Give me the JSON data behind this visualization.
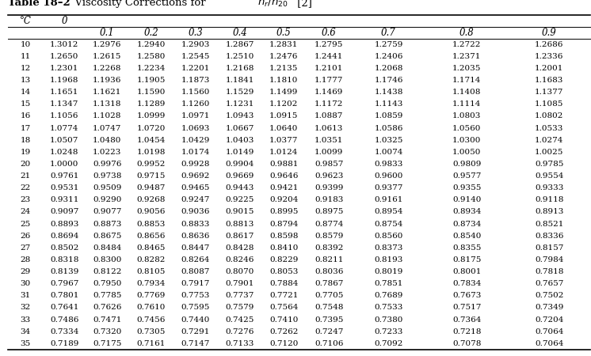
{
  "title_bold": "Table 18–2",
  "title_normal": "  Viscosity Corrections for ",
  "title_math": "$n_r/n_{20}$",
  "title_end": " [2]",
  "col_headers": [
    "0",
    "0.1",
    "0.2",
    "0.3",
    "0.4",
    "0.5",
    "0.6",
    "0.7",
    "0.8",
    "0.9"
  ],
  "row_header": "°C",
  "rows": [
    [
      10,
      1.3012,
      1.2976,
      1.294,
      1.2903,
      1.2867,
      1.2831,
      1.2795,
      1.2759,
      1.2722,
      1.2686
    ],
    [
      11,
      1.265,
      1.2615,
      1.258,
      1.2545,
      1.251,
      1.2476,
      1.2441,
      1.2406,
      1.2371,
      1.2336
    ],
    [
      12,
      1.2301,
      1.2268,
      1.2234,
      1.2201,
      1.2168,
      1.2135,
      1.2101,
      1.2068,
      1.2035,
      1.2001
    ],
    [
      13,
      1.1968,
      1.1936,
      1.1905,
      1.1873,
      1.1841,
      1.181,
      1.1777,
      1.1746,
      1.1714,
      1.1683
    ],
    [
      14,
      1.1651,
      1.1621,
      1.159,
      1.156,
      1.1529,
      1.1499,
      1.1469,
      1.1438,
      1.1408,
      1.1377
    ],
    [
      15,
      1.1347,
      1.1318,
      1.1289,
      1.126,
      1.1231,
      1.1202,
      1.1172,
      1.1143,
      1.1114,
      1.1085
    ],
    [
      16,
      1.1056,
      1.1028,
      1.0999,
      1.0971,
      1.0943,
      1.0915,
      1.0887,
      1.0859,
      1.0803,
      1.0802
    ],
    [
      17,
      1.0774,
      1.0747,
      1.072,
      1.0693,
      1.0667,
      1.064,
      1.0613,
      1.0586,
      1.056,
      1.0533
    ],
    [
      18,
      1.0507,
      1.048,
      1.0454,
      1.0429,
      1.0403,
      1.0377,
      1.0351,
      1.0325,
      1.03,
      1.0274
    ],
    [
      19,
      1.0248,
      1.0223,
      1.0198,
      1.0174,
      1.0149,
      1.0124,
      1.0099,
      1.0074,
      1.005,
      1.0025
    ],
    [
      20,
      1.0,
      0.9976,
      0.9952,
      0.9928,
      0.9904,
      0.9881,
      0.9857,
      0.9833,
      0.9809,
      0.9785
    ],
    [
      21,
      0.9761,
      0.9738,
      0.9715,
      0.9692,
      0.9669,
      0.9646,
      0.9623,
      0.96,
      0.9577,
      0.9554
    ],
    [
      22,
      0.9531,
      0.9509,
      0.9487,
      0.9465,
      0.9443,
      0.9421,
      0.9399,
      0.9377,
      0.9355,
      0.9333
    ],
    [
      23,
      0.9311,
      0.929,
      0.9268,
      0.9247,
      0.9225,
      0.9204,
      0.9183,
      0.9161,
      0.914,
      0.9118
    ],
    [
      24,
      0.9097,
      0.9077,
      0.9056,
      0.9036,
      0.9015,
      0.8995,
      0.8975,
      0.8954,
      0.8934,
      0.8913
    ],
    [
      25,
      0.8893,
      0.8873,
      0.8853,
      0.8833,
      0.8813,
      0.8794,
      0.8774,
      0.8754,
      0.8734,
      0.8521
    ],
    [
      26,
      0.8694,
      0.8675,
      0.8656,
      0.8636,
      0.8617,
      0.8598,
      0.8579,
      0.856,
      0.854,
      0.8336
    ],
    [
      27,
      0.8502,
      0.8484,
      0.8465,
      0.8447,
      0.8428,
      0.841,
      0.8392,
      0.8373,
      0.8355,
      0.8157
    ],
    [
      28,
      0.8318,
      0.83,
      0.8282,
      0.8264,
      0.8246,
      0.8229,
      0.8211,
      0.8193,
      0.8175,
      0.7984
    ],
    [
      29,
      0.8139,
      0.8122,
      0.8105,
      0.8087,
      0.807,
      0.8053,
      0.8036,
      0.8019,
      0.8001,
      0.7818
    ],
    [
      30,
      0.7967,
      0.795,
      0.7934,
      0.7917,
      0.7901,
      0.7884,
      0.7867,
      0.7851,
      0.7834,
      0.7657
    ],
    [
      31,
      0.7801,
      0.7785,
      0.7769,
      0.7753,
      0.7737,
      0.7721,
      0.7705,
      0.7689,
      0.7673,
      0.7502
    ],
    [
      32,
      0.7641,
      0.7626,
      0.761,
      0.7595,
      0.7579,
      0.7564,
      0.7548,
      0.7533,
      0.7517,
      0.7349
    ],
    [
      33,
      0.7486,
      0.7471,
      0.7456,
      0.744,
      0.7425,
      0.741,
      0.7395,
      0.738,
      0.7364,
      0.7204
    ],
    [
      34,
      0.7334,
      0.732,
      0.7305,
      0.7291,
      0.7276,
      0.7262,
      0.7247,
      0.7233,
      0.7218,
      0.7064
    ],
    [
      35,
      0.7189,
      0.7175,
      0.7161,
      0.7147,
      0.7133,
      0.712,
      0.7106,
      0.7092,
      0.7078,
      0.7064
    ]
  ],
  "bg_color": "#ffffff",
  "text_color": "#000000",
  "fs_title": 9.5,
  "fs_header": 8.5,
  "fs_data": 7.5
}
